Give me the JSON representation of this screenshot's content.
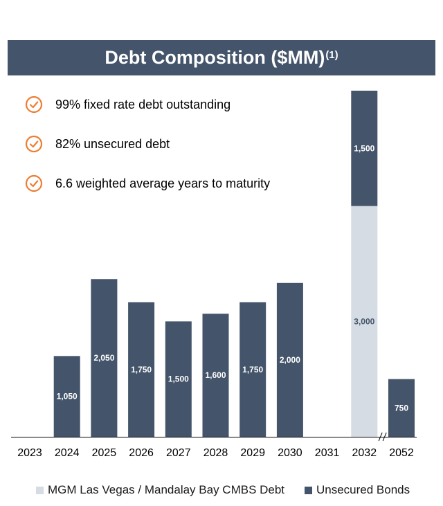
{
  "header": {
    "title": "Debt Composition ($MM)",
    "footnote": "(1)"
  },
  "bullets": [
    {
      "icon": "check-circle-icon",
      "text": "99% fixed rate debt outstanding"
    },
    {
      "icon": "check-circle-icon",
      "text": "82% unsecured debt"
    },
    {
      "icon": "check-circle-icon",
      "text": "6.6 weighted average years to maturity"
    }
  ],
  "colors": {
    "header": "#44546a",
    "bonds": "#44546a",
    "cmbs": "#d6dce4",
    "accent": "#ed7d31"
  },
  "chart_data": {
    "type": "bar",
    "stacked": true,
    "categories": [
      "2023",
      "2024",
      "2025",
      "2026",
      "2027",
      "2028",
      "2029",
      "2030",
      "2031",
      "2032",
      "2052"
    ],
    "series": [
      {
        "name": "MGM Las Vegas / Mandalay Bay CMBS Debt",
        "color": "#d6dce4",
        "values": [
          0,
          0,
          0,
          0,
          0,
          0,
          0,
          0,
          0,
          3000,
          0
        ]
      },
      {
        "name": "Unsecured Bonds",
        "color": "#44546a",
        "values": [
          0,
          1050,
          2050,
          1750,
          1500,
          1600,
          1750,
          2000,
          0,
          1500,
          750
        ]
      }
    ],
    "data_labels": [
      [
        "",
        "",
        "",
        "",
        "",
        "",
        "",
        "",
        "",
        "3,000",
        ""
      ],
      [
        "",
        "1,050",
        "2,050",
        "1,750",
        "1,500",
        "1,600",
        "1,750",
        "2,000",
        "",
        "1,500",
        "750"
      ]
    ],
    "axis_break_after": "2032",
    "ylim": [
      0,
      4500
    ],
    "grid": false,
    "legend_position": "bottom"
  }
}
